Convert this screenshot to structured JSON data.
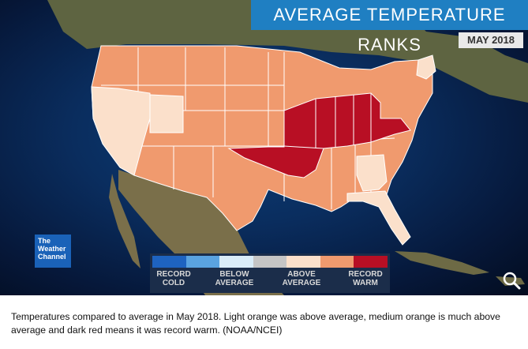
{
  "header": {
    "title": "AVERAGE TEMPERATURE RANKS",
    "date": "MAY 2018"
  },
  "logo": {
    "line1": "The",
    "line2": "Weather",
    "line3": "Channel"
  },
  "legend": {
    "colors": [
      "#1e63c0",
      "#5aa3e0",
      "#d9ecf8",
      "#c5c5c5",
      "#fbe0cb",
      "#f09a6e",
      "#b80f24"
    ],
    "labels": [
      {
        "top": "RECORD",
        "bottom": "COLD"
      },
      {
        "top": "BELOW",
        "bottom": "AVERAGE"
      },
      {
        "top": "ABOVE",
        "bottom": "AVERAGE"
      },
      {
        "top": "RECORD",
        "bottom": "WARM"
      }
    ]
  },
  "map_colors": {
    "above": "#fbe0cb",
    "much_above": "#f09a6e",
    "record": "#b80f24",
    "land": "#6e6a47",
    "ocean": "#0a2d5e"
  },
  "caption": "Temperatures compared to average in May 2018. Light orange was above average, medium orange is much above average and dark red means it was record warm. (NOAA/NCEI)",
  "controls": {
    "search_icon": "magnifier-icon"
  }
}
